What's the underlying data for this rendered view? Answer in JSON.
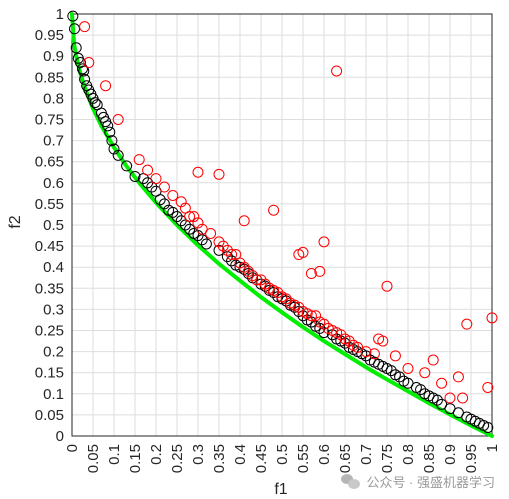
{
  "chart_data": {
    "type": "scatter",
    "xlabel": "f1",
    "ylabel": "f2",
    "xlim": [
      0,
      1
    ],
    "ylim": [
      0,
      1
    ],
    "grid": true,
    "xticks": [
      "0",
      "0.05",
      "0.1",
      "0.15",
      "0.2",
      "0.25",
      "0.3",
      "0.35",
      "0.4",
      "0.45",
      "0.5",
      "0.55",
      "0.6",
      "0.65",
      "0.7",
      "0.75",
      "0.8",
      "0.85",
      "0.9",
      "0.95",
      "1"
    ],
    "yticks": [
      "0",
      "0.05",
      "0.1",
      "0.15",
      "0.2",
      "0.25",
      "0.3",
      "0.35",
      "0.4",
      "0.45",
      "0.5",
      "0.55",
      "0.6",
      "0.65",
      "0.7",
      "0.75",
      "0.8",
      "0.85",
      "0.9",
      "0.95",
      "1"
    ],
    "colors": {
      "front": "#00ee00",
      "black": "#000000",
      "red": "#ff0000"
    },
    "series": [
      {
        "marker": "line",
        "color": "#00ee00",
        "x": [
          0,
          0.005,
          0.01,
          0.02,
          0.03,
          0.05,
          0.07,
          0.1,
          0.13,
          0.16,
          0.2,
          0.25,
          0.3,
          0.35,
          0.4,
          0.45,
          0.5,
          0.55,
          0.6,
          0.65,
          0.7,
          0.75,
          0.8,
          0.85,
          0.9,
          0.95,
          1
        ],
        "y": [
          1,
          0.929,
          0.9,
          0.859,
          0.827,
          0.776,
          0.735,
          0.684,
          0.639,
          0.6,
          0.553,
          0.5,
          0.452,
          0.408,
          0.368,
          0.329,
          0.293,
          0.258,
          0.225,
          0.194,
          0.163,
          0.134,
          0.106,
          0.078,
          0.051,
          0.025,
          0
        ]
      },
      {
        "marker": "circle",
        "color": "#000000",
        "x": [
          0.002,
          0.006,
          0.01,
          0.015,
          0.02,
          0.025,
          0.028,
          0.03,
          0.035,
          0.04,
          0.045,
          0.05,
          0.055,
          0.06,
          0.07,
          0.075,
          0.08,
          0.085,
          0.09,
          0.095,
          0.1,
          0.11,
          0.13,
          0.15,
          0.17,
          0.18,
          0.19,
          0.2,
          0.21,
          0.22,
          0.23,
          0.24,
          0.25,
          0.26,
          0.27,
          0.28,
          0.29,
          0.3,
          0.31,
          0.32,
          0.35,
          0.37,
          0.38,
          0.39,
          0.4,
          0.41,
          0.42,
          0.43,
          0.44,
          0.45,
          0.46,
          0.47,
          0.48,
          0.49,
          0.5,
          0.51,
          0.52,
          0.53,
          0.54,
          0.55,
          0.56,
          0.57,
          0.58,
          0.59,
          0.6,
          0.62,
          0.63,
          0.64,
          0.65,
          0.66,
          0.67,
          0.68,
          0.69,
          0.7,
          0.71,
          0.72,
          0.73,
          0.74,
          0.75,
          0.76,
          0.77,
          0.78,
          0.79,
          0.8,
          0.82,
          0.83,
          0.84,
          0.85,
          0.86,
          0.87,
          0.88,
          0.9,
          0.92,
          0.94,
          0.95,
          0.96,
          0.97,
          0.98,
          0.99
        ],
        "y": [
          0.995,
          0.965,
          0.92,
          0.895,
          0.885,
          0.87,
          0.865,
          0.845,
          0.83,
          0.82,
          0.81,
          0.8,
          0.79,
          0.785,
          0.765,
          0.755,
          0.745,
          0.735,
          0.72,
          0.7,
          0.68,
          0.665,
          0.64,
          0.615,
          0.61,
          0.6,
          0.59,
          0.58,
          0.56,
          0.55,
          0.535,
          0.53,
          0.52,
          0.51,
          0.5,
          0.49,
          0.48,
          0.475,
          0.465,
          0.455,
          0.44,
          0.425,
          0.415,
          0.405,
          0.4,
          0.395,
          0.385,
          0.375,
          0.37,
          0.36,
          0.355,
          0.345,
          0.34,
          0.33,
          0.325,
          0.32,
          0.31,
          0.305,
          0.295,
          0.285,
          0.275,
          0.27,
          0.26,
          0.255,
          0.245,
          0.24,
          0.23,
          0.225,
          0.22,
          0.21,
          0.205,
          0.2,
          0.195,
          0.19,
          0.18,
          0.175,
          0.17,
          0.165,
          0.16,
          0.155,
          0.145,
          0.14,
          0.13,
          0.125,
          0.115,
          0.11,
          0.1,
          0.095,
          0.09,
          0.085,
          0.075,
          0.065,
          0.055,
          0.045,
          0.04,
          0.035,
          0.03,
          0.025,
          0.02
        ]
      },
      {
        "marker": "circle",
        "color": "#ff0000",
        "x": [
          0.03,
          0.04,
          0.08,
          0.11,
          0.16,
          0.18,
          0.2,
          0.22,
          0.24,
          0.26,
          0.27,
          0.28,
          0.29,
          0.3,
          0.31,
          0.33,
          0.35,
          0.36,
          0.37,
          0.38,
          0.39,
          0.4,
          0.41,
          0.42,
          0.43,
          0.44,
          0.45,
          0.46,
          0.47,
          0.48,
          0.49,
          0.5,
          0.51,
          0.52,
          0.53,
          0.54,
          0.55,
          0.56,
          0.57,
          0.58,
          0.59,
          0.6,
          0.61,
          0.62,
          0.63,
          0.64,
          0.65,
          0.66,
          0.67,
          0.68,
          0.7,
          0.72,
          0.73,
          0.74,
          0.75,
          0.77,
          0.8,
          0.84,
          0.86,
          0.88,
          0.9,
          0.92,
          0.93,
          0.94,
          0.99,
          1,
          0.3,
          0.35,
          0.41,
          0.48,
          0.54,
          0.55,
          0.57,
          0.59,
          0.6,
          0.63
        ],
        "y": [
          0.97,
          0.885,
          0.83,
          0.75,
          0.655,
          0.63,
          0.61,
          0.59,
          0.57,
          0.555,
          0.54,
          0.52,
          0.52,
          0.505,
          0.49,
          0.48,
          0.46,
          0.45,
          0.44,
          0.43,
          0.43,
          0.41,
          0.4,
          0.39,
          0.38,
          0.37,
          0.37,
          0.36,
          0.35,
          0.345,
          0.34,
          0.33,
          0.325,
          0.315,
          0.31,
          0.305,
          0.295,
          0.29,
          0.285,
          0.285,
          0.27,
          0.265,
          0.255,
          0.25,
          0.245,
          0.24,
          0.23,
          0.225,
          0.215,
          0.21,
          0.2,
          0.195,
          0.23,
          0.225,
          0.355,
          0.19,
          0.16,
          0.15,
          0.18,
          0.125,
          0.09,
          0.14,
          0.09,
          0.265,
          0.115,
          0.28,
          0.625,
          0.62,
          0.51,
          0.535,
          0.43,
          0.435,
          0.385,
          0.39,
          0.46,
          0.865
        ]
      }
    ]
  },
  "watermark": {
    "text": "公众号 · 强盛机器学习"
  }
}
